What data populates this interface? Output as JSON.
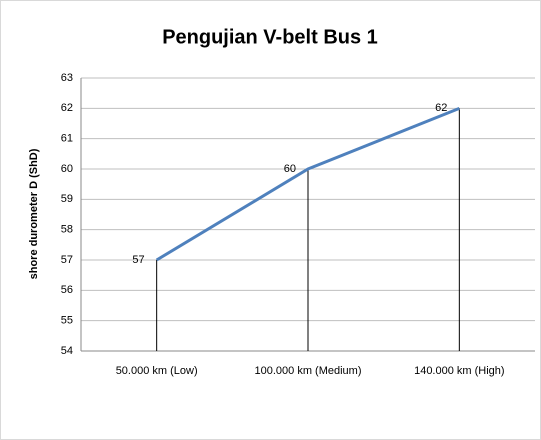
{
  "chart_data": {
    "type": "line",
    "title": "Pengujian V-belt Bus 1",
    "y_label": "shore durometer D (ShD)",
    "categories": [
      "50.000 km (Low)",
      "100.000 km (Medium)",
      "140.000 km (High)"
    ],
    "values": [
      57,
      60,
      62
    ],
    "color": "#4f81bd",
    "ylim": [
      54,
      63
    ],
    "yticks": [
      54,
      55,
      56,
      57,
      58,
      59,
      60,
      61,
      62,
      63
    ],
    "grid": true,
    "drop_lines": true
  }
}
